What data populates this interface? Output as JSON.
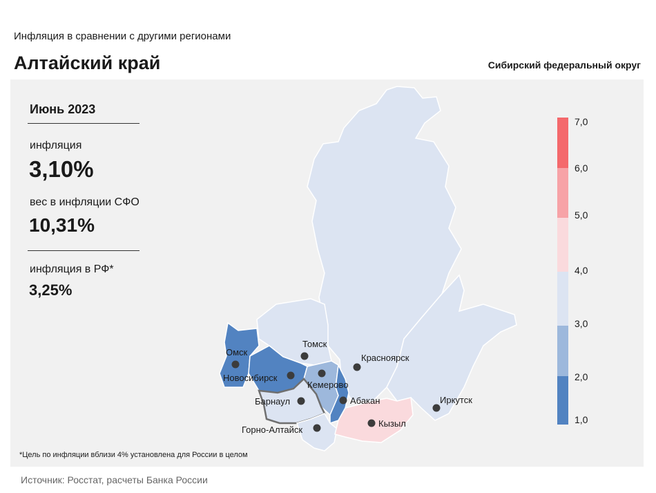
{
  "header": {
    "subtitle": "Инфляция  в сравнении  с другими  регионами",
    "title": "Алтайский край",
    "district": "Сибирский федеральный округ"
  },
  "stats": {
    "period": "Июнь 2023",
    "inflation_label": "инфляция",
    "inflation_value": "3,10%",
    "weight_label": "вес в инфляции  СФО",
    "weight_value": "10,31%",
    "rf_label": "инфляция  в РФ*",
    "rf_value": "3,25%"
  },
  "legend": {
    "ticks": [
      "7,0",
      "6,0",
      "5,0",
      "4,0",
      "3,0",
      "2,0",
      "1,0"
    ],
    "colors": [
      "#f4696c",
      "#f7a3a7",
      "#fadadd",
      "#dce4f2",
      "#9db8dc",
      "#5283c1"
    ]
  },
  "cities": [
    "Томск",
    "Омск",
    "Новосибирск",
    "Кемерово",
    "Красноярск",
    "Барнаул",
    "Абакан",
    "Иркутск",
    "Горно-Алтайск",
    "Кызыл"
  ],
  "footnote": "*Цель по инфляции вблизи 4% установлена для России в целом",
  "source": "Источник: Росстат, расчеты Банка России"
}
